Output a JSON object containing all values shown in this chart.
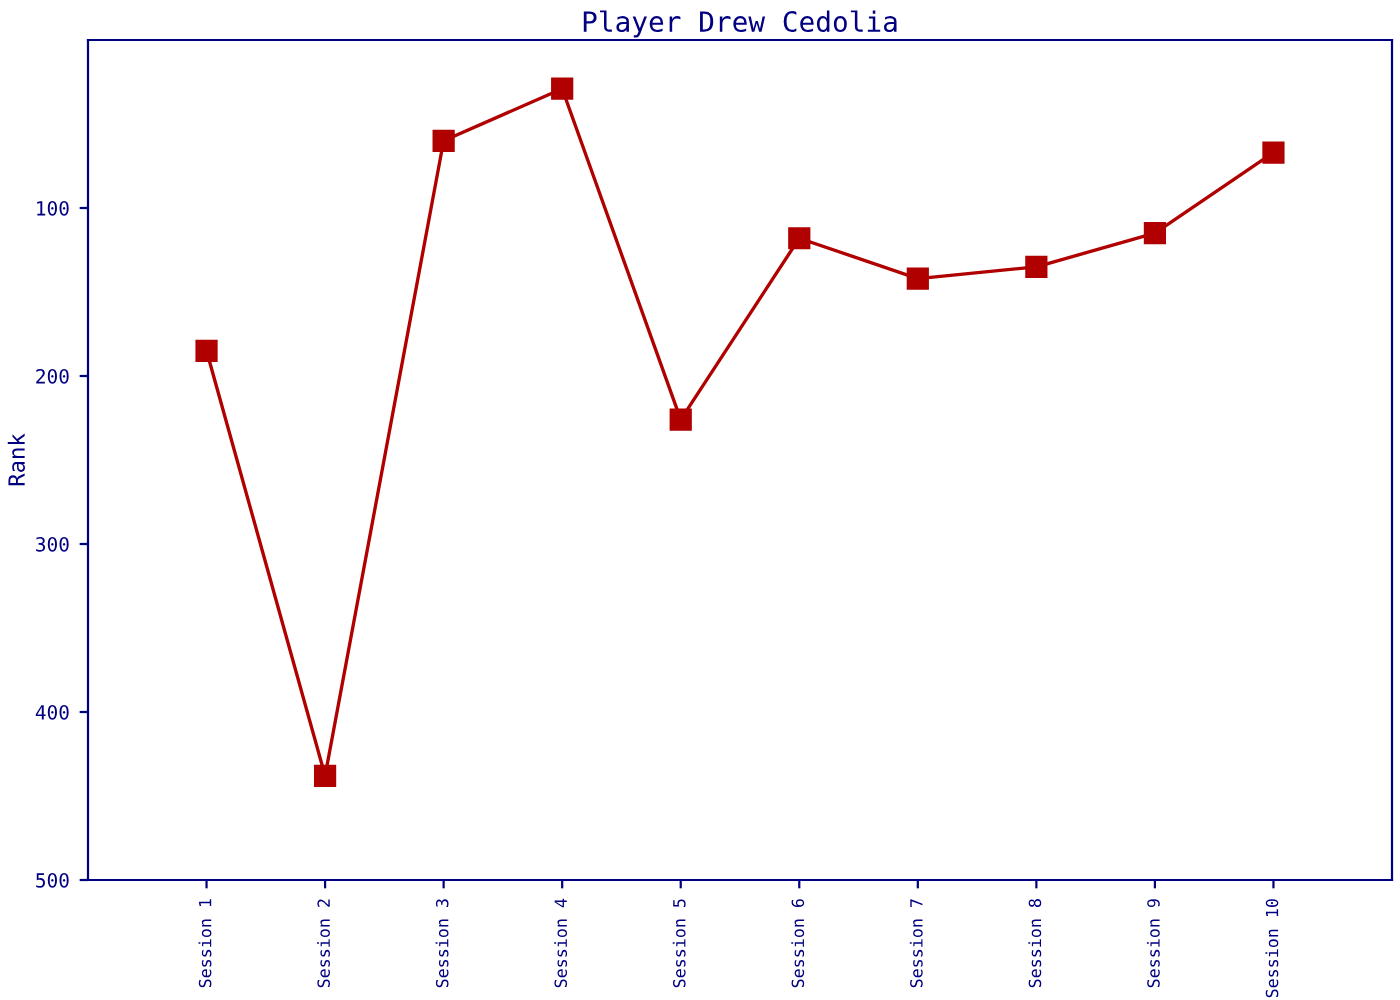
{
  "chart_data": {
    "type": "line",
    "title": "Player Drew Cedolia",
    "ylabel": "Rank",
    "categories": [
      "Session 1",
      "Session 2",
      "Session 3",
      "Session 4",
      "Session 5",
      "Session 6",
      "Session 7",
      "Session 8",
      "Session 9",
      "Session 10"
    ],
    "series": [
      {
        "color": "#b00000",
        "values": [
          185,
          438,
          60,
          29,
          226,
          118,
          142,
          135,
          115,
          67
        ]
      }
    ],
    "ylim": [
      500,
      0
    ],
    "yticks": [
      100,
      200,
      300,
      400,
      500
    ],
    "marker": "square",
    "line_style": "solid",
    "grid": false,
    "legend": false
  }
}
